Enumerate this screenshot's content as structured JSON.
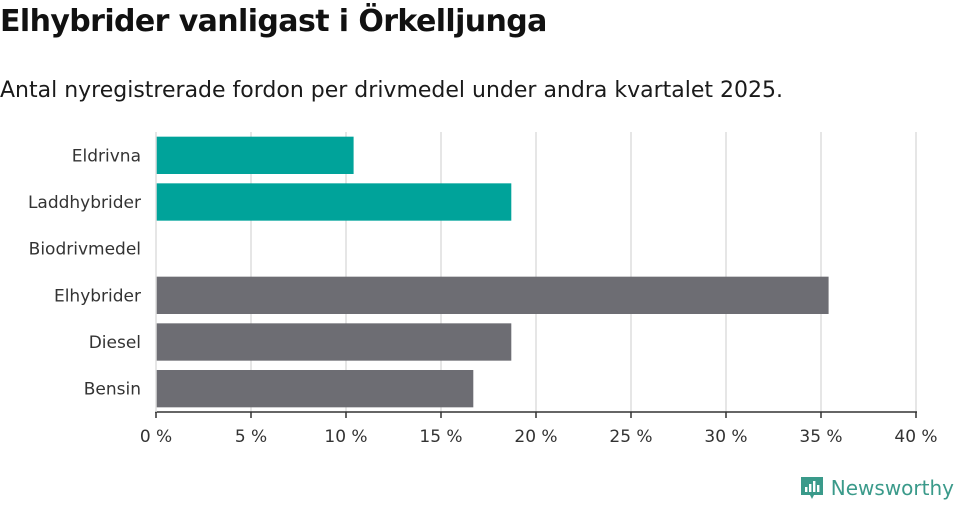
{
  "title": "Elhybrider vanligast i Örkelljunga",
  "subtitle": "Antal nyregistrerade fordon per drivmedel under andra kvartalet 2025.",
  "brand": {
    "name": "Newsworthy",
    "color": "#3a9a8a"
  },
  "colors": {
    "electric": "#00a39a",
    "other": "#6d6d73",
    "grid": "#dddddd",
    "axis": "#333333",
    "text": "#333333"
  },
  "chart_data": {
    "type": "bar",
    "orientation": "horizontal",
    "categories": [
      "Eldrivna",
      "Laddhybrider",
      "Biodrivmedel",
      "Elhybrider",
      "Diesel",
      "Bensin"
    ],
    "values": [
      10.4,
      18.7,
      0,
      35.4,
      18.7,
      16.7
    ],
    "bar_colors": [
      "#00a39a",
      "#00a39a",
      "#00a39a",
      "#6d6d73",
      "#6d6d73",
      "#6d6d73"
    ],
    "xlim": [
      0,
      40
    ],
    "x_ticks": [
      0,
      5,
      10,
      15,
      20,
      25,
      30,
      35,
      40
    ],
    "x_tick_labels": [
      "0 %",
      "5 %",
      "10 %",
      "15 %",
      "20 %",
      "25 %",
      "30 %",
      "35 %",
      "40 %"
    ],
    "xlabel": "",
    "ylabel": "",
    "grid": true
  }
}
